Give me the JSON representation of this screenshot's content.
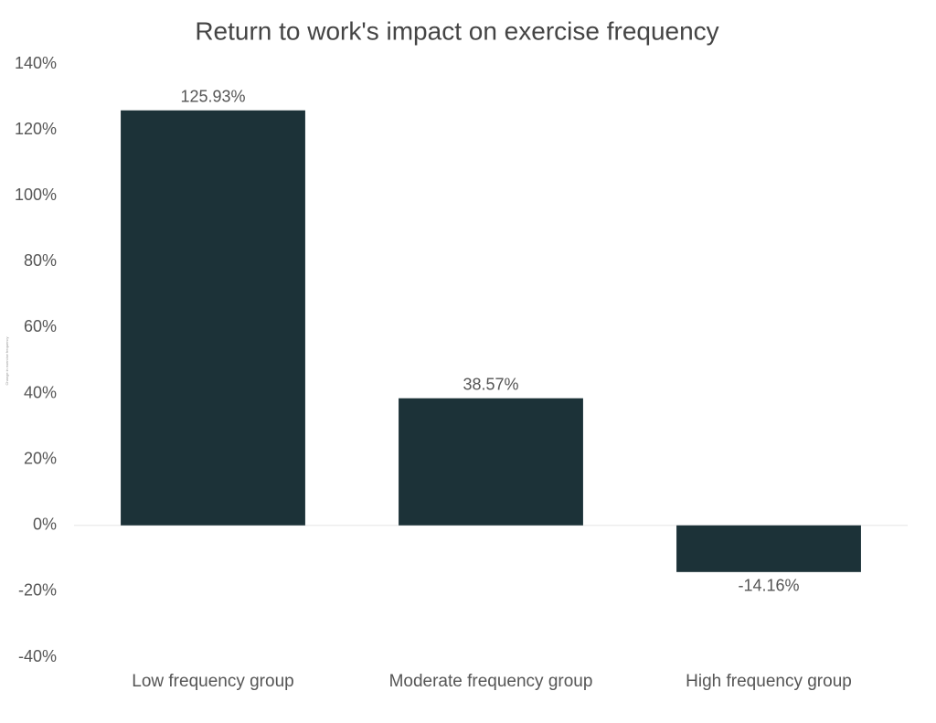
{
  "chart_data": {
    "type": "bar",
    "title": "Return to work's impact on exercise frequency",
    "ylabel": "Change in exercise frequency",
    "categories": [
      "Low frequency group",
      "Moderate frequency group",
      "High frequency group"
    ],
    "values": [
      125.93,
      38.57,
      -14.16
    ],
    "value_labels": [
      "125.93%",
      "38.57%",
      "-14.16%"
    ],
    "color": "#1c3238",
    "ylim": [
      -40,
      140
    ],
    "yticks": [
      {
        "value": -40,
        "label": "-40%"
      },
      {
        "value": -20,
        "label": "-20%"
      },
      {
        "value": 0,
        "label": "0%"
      },
      {
        "value": 20,
        "label": "20%"
      },
      {
        "value": 40,
        "label": "40%"
      },
      {
        "value": 60,
        "label": "60%"
      },
      {
        "value": 80,
        "label": "80%"
      },
      {
        "value": 100,
        "label": "100%"
      },
      {
        "value": 120,
        "label": "120%"
      },
      {
        "value": 140,
        "label": "140%"
      }
    ]
  }
}
